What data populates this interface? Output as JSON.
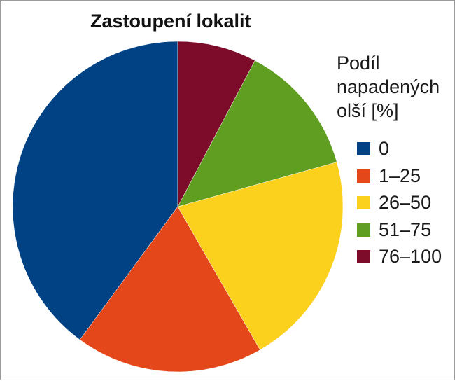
{
  "chart_data": {
    "type": "pie",
    "title": "Zastoupení lokalit",
    "legend_title_lines": [
      "Podíl",
      "napadených",
      "olší [%]"
    ],
    "legend_position": "right",
    "slices": [
      {
        "label": "0",
        "value": 42.3,
        "color": "#004283"
      },
      {
        "label": "1–25",
        "value": 19.5,
        "color": "#e3471a"
      },
      {
        "label": "26–50",
        "value": 22.3,
        "color": "#fcd11e"
      },
      {
        "label": "51–75",
        "value": 13.7,
        "color": "#5f9e20"
      },
      {
        "label": "76–100",
        "value": 8.2,
        "color": "#7d0c2a"
      }
    ]
  }
}
